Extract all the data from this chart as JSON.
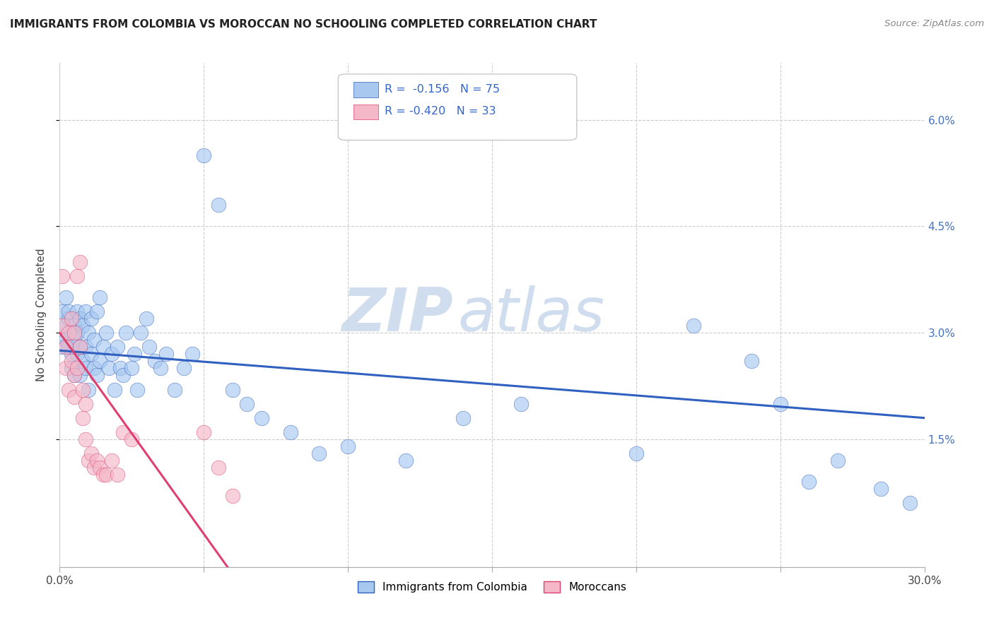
{
  "title": "IMMIGRANTS FROM COLOMBIA VS MOROCCAN NO SCHOOLING COMPLETED CORRELATION CHART",
  "source": "Source: ZipAtlas.com",
  "ylabel": "No Schooling Completed",
  "ytick_vals": [
    0.015,
    0.03,
    0.045,
    0.06
  ],
  "ytick_labels": [
    "1.5%",
    "3.0%",
    "4.5%",
    "6.0%"
  ],
  "xmin": 0.0,
  "xmax": 0.3,
  "ymin": -0.003,
  "ymax": 0.068,
  "color_blue": "#A8C8F0",
  "color_pink": "#F4B8C8",
  "line_blue": "#3060C0",
  "line_pink": "#E04070",
  "watermark_zip": "ZIP",
  "watermark_atlas": "atlas",
  "colombia_x": [
    0.001,
    0.001,
    0.002,
    0.002,
    0.002,
    0.003,
    0.003,
    0.003,
    0.004,
    0.004,
    0.004,
    0.005,
    0.005,
    0.005,
    0.006,
    0.006,
    0.006,
    0.007,
    0.007,
    0.007,
    0.008,
    0.008,
    0.009,
    0.009,
    0.009,
    0.01,
    0.01,
    0.011,
    0.011,
    0.012,
    0.012,
    0.013,
    0.013,
    0.014,
    0.014,
    0.015,
    0.016,
    0.017,
    0.018,
    0.019,
    0.02,
    0.021,
    0.022,
    0.023,
    0.025,
    0.026,
    0.027,
    0.028,
    0.03,
    0.031,
    0.033,
    0.035,
    0.037,
    0.04,
    0.043,
    0.046,
    0.05,
    0.055,
    0.06,
    0.065,
    0.07,
    0.08,
    0.09,
    0.1,
    0.12,
    0.14,
    0.16,
    0.2,
    0.22,
    0.24,
    0.25,
    0.26,
    0.27,
    0.285,
    0.295
  ],
  "colombia_y": [
    0.028,
    0.033,
    0.029,
    0.031,
    0.035,
    0.032,
    0.028,
    0.033,
    0.03,
    0.025,
    0.027,
    0.029,
    0.031,
    0.024,
    0.03,
    0.033,
    0.027,
    0.032,
    0.028,
    0.024,
    0.026,
    0.031,
    0.033,
    0.025,
    0.028,
    0.022,
    0.03,
    0.027,
    0.032,
    0.025,
    0.029,
    0.033,
    0.024,
    0.026,
    0.035,
    0.028,
    0.03,
    0.025,
    0.027,
    0.022,
    0.028,
    0.025,
    0.024,
    0.03,
    0.025,
    0.027,
    0.022,
    0.03,
    0.032,
    0.028,
    0.026,
    0.025,
    0.027,
    0.022,
    0.025,
    0.027,
    0.055,
    0.048,
    0.022,
    0.02,
    0.018,
    0.016,
    0.013,
    0.014,
    0.012,
    0.018,
    0.02,
    0.013,
    0.031,
    0.026,
    0.02,
    0.009,
    0.012,
    0.008,
    0.006
  ],
  "morocco_x": [
    0.001,
    0.001,
    0.002,
    0.002,
    0.003,
    0.003,
    0.004,
    0.004,
    0.005,
    0.005,
    0.005,
    0.006,
    0.006,
    0.007,
    0.007,
    0.008,
    0.008,
    0.009,
    0.009,
    0.01,
    0.011,
    0.012,
    0.013,
    0.014,
    0.015,
    0.016,
    0.018,
    0.02,
    0.022,
    0.025,
    0.05,
    0.055,
    0.06
  ],
  "morocco_y": [
    0.031,
    0.038,
    0.025,
    0.028,
    0.03,
    0.022,
    0.026,
    0.032,
    0.021,
    0.024,
    0.03,
    0.025,
    0.038,
    0.04,
    0.028,
    0.018,
    0.022,
    0.02,
    0.015,
    0.012,
    0.013,
    0.011,
    0.012,
    0.011,
    0.01,
    0.01,
    0.012,
    0.01,
    0.016,
    0.015,
    0.016,
    0.011,
    0.007
  ],
  "blue_line_x0": 0.0,
  "blue_line_x1": 0.3,
  "blue_line_y0": 0.0275,
  "blue_line_y1": 0.018,
  "pink_line_x0": 0.0,
  "pink_line_x1": 0.06,
  "pink_line_y0": 0.03,
  "pink_line_y1": -0.004
}
